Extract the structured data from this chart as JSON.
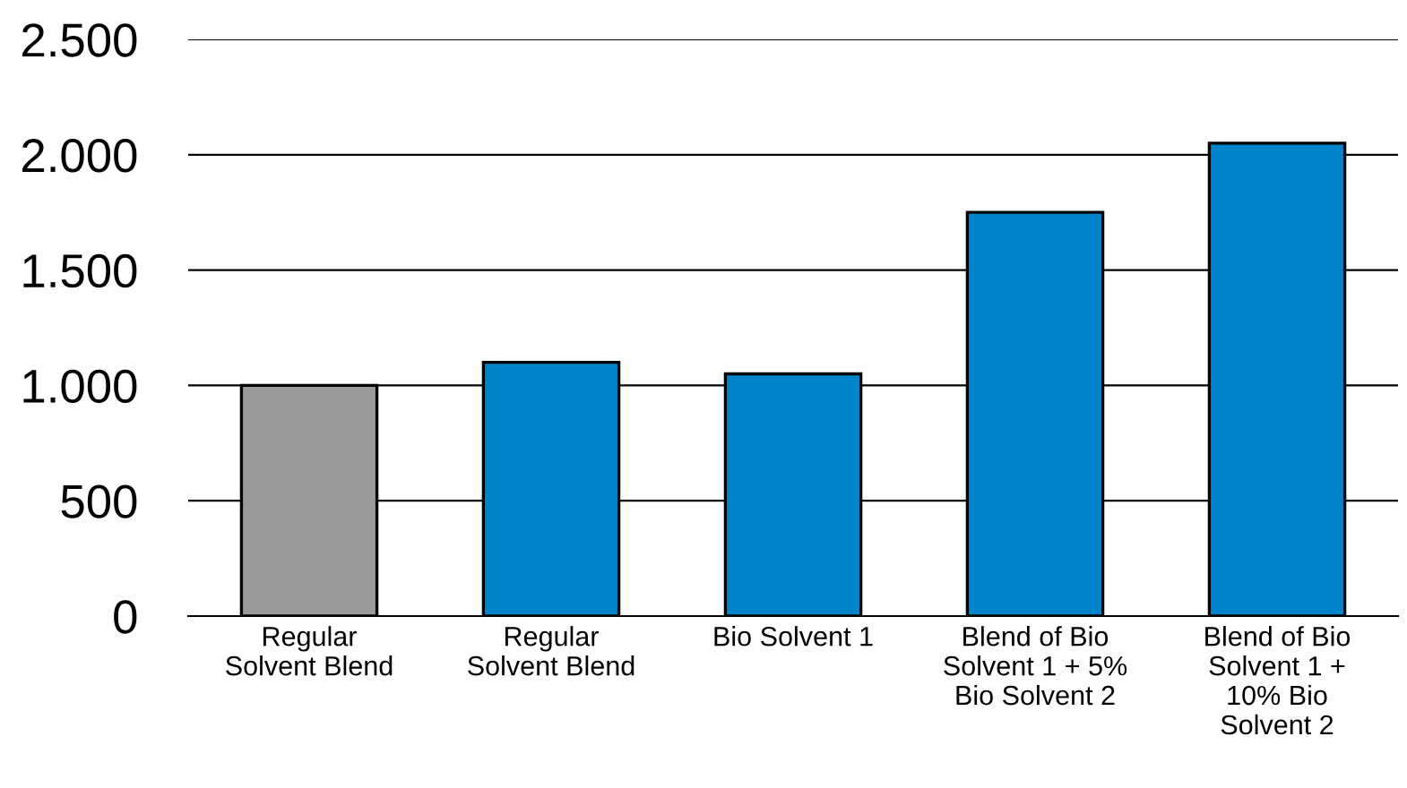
{
  "chart_data": {
    "type": "bar",
    "categories": [
      "Regular\nSolvent Blend",
      "Regular\nSolvent Blend",
      "Bio Solvent 1",
      "Blend of Bio\nSolvent 1 + 5%\nBio Solvent 2",
      "Blend of Bio\nSolvent 1 +\n10% Bio\nSolvent 2"
    ],
    "values": [
      1000,
      1100,
      1050,
      1750,
      2050
    ],
    "colors": [
      "#999999",
      "#0085cc",
      "#0085cc",
      "#0085cc",
      "#0085cc"
    ],
    "ylim": [
      0,
      2500
    ],
    "yticks": [
      {
        "value": 0,
        "label": "0"
      },
      {
        "value": 500,
        "label": "500"
      },
      {
        "value": 1000,
        "label": "1.000"
      },
      {
        "value": 1500,
        "label": "1.500"
      },
      {
        "value": 2000,
        "label": "2.000"
      },
      {
        "value": 2500,
        "label": "2.500"
      }
    ],
    "grid": "y",
    "legend": false
  }
}
